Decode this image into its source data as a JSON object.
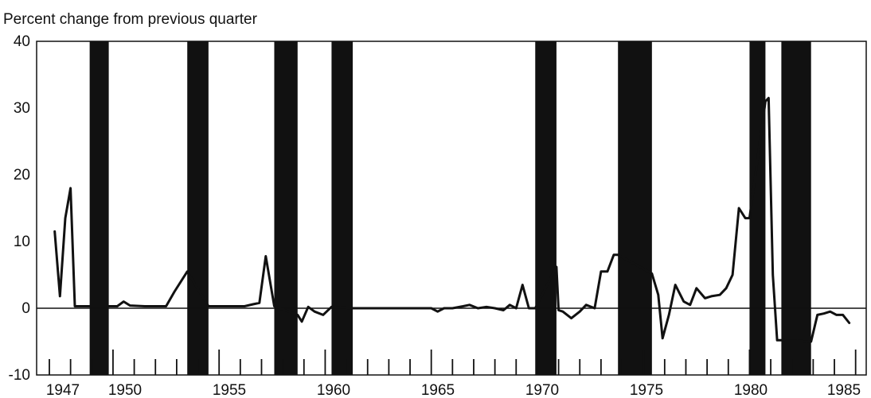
{
  "chart_data": {
    "type": "line",
    "ylabel": "Percent change from previous quarter",
    "xlim": [
      1947,
      1985
    ],
    "ylim": [
      -10,
      40
    ],
    "yticks": [
      -10,
      0,
      10,
      20,
      30,
      40
    ],
    "ytick_labels": [
      "-10",
      "0",
      "10",
      "20",
      "30",
      "40"
    ],
    "xticks": [
      1947,
      1950,
      1955,
      1960,
      1965,
      1970,
      1975,
      1980,
      1985
    ],
    "xtick_labels": [
      "1947",
      "1950",
      "1955",
      "1960",
      "1965",
      "1970",
      "1975",
      "1980",
      "1985"
    ],
    "zero_line": true,
    "recession_shading": [
      [
        1948.9,
        1949.8
      ],
      [
        1953.5,
        1954.5
      ],
      [
        1957.6,
        1958.7
      ],
      [
        1960.3,
        1961.3
      ],
      [
        1969.9,
        1970.9
      ],
      [
        1973.8,
        1975.4
      ],
      [
        1980.0,
        1980.75
      ],
      [
        1981.5,
        1982.9
      ]
    ],
    "series": [
      {
        "x": [
          1947.25,
          1947.5,
          1947.75,
          1948.0,
          1948.2,
          1948.4,
          1948.6,
          1948.9,
          1949.8,
          1950.2,
          1950.5,
          1950.8,
          1951.5,
          1952.5,
          1952.9,
          1953.5,
          1954.5,
          1955.5,
          1956.2,
          1956.6,
          1956.9,
          1957.2,
          1957.6,
          1958.7,
          1958.9,
          1959.2,
          1959.5,
          1959.9,
          1960.3,
          1961.3,
          1965.0,
          1965.3,
          1965.6,
          1966.0,
          1966.5,
          1966.8,
          1967.2,
          1967.6,
          1968.0,
          1968.4,
          1968.7,
          1969.0,
          1969.3,
          1969.6,
          1969.9,
          1970.9,
          1971.0,
          1971.2,
          1971.6,
          1972.0,
          1972.3,
          1972.7,
          1973.0,
          1973.3,
          1973.6,
          1973.8,
          1975.4,
          1975.7,
          1975.9,
          1976.2,
          1976.5,
          1976.9,
          1977.2,
          1977.5,
          1977.9,
          1978.2,
          1978.6,
          1978.9,
          1979.2,
          1979.5,
          1979.8,
          1980.0,
          1980.75,
          1980.9,
          1981.1,
          1981.3,
          1981.5,
          1982.9,
          1983.2,
          1983.5,
          1983.8,
          1984.1,
          1984.4,
          1984.7
        ],
        "values": [
          11.5,
          1.8,
          13.5,
          18.0,
          0.3,
          0.3,
          0.3,
          0.3,
          0.3,
          0.3,
          1.0,
          0.4,
          0.3,
          0.3,
          2.5,
          5.5,
          0.3,
          0.3,
          0.3,
          0.6,
          0.8,
          7.8,
          0.3,
          -1.0,
          -2.0,
          0.2,
          -0.5,
          -1.0,
          0.2,
          0.0,
          0.0,
          -0.5,
          0.0,
          0.0,
          0.3,
          0.5,
          0.0,
          0.2,
          0.0,
          -0.3,
          0.5,
          0.0,
          3.5,
          0.0,
          0.0,
          6.2,
          -0.3,
          -0.5,
          -1.5,
          -0.5,
          0.5,
          0.0,
          5.5,
          5.5,
          8.0,
          8.0,
          5.2,
          2.0,
          -4.5,
          -1.0,
          3.5,
          1.0,
          0.5,
          3.0,
          1.5,
          1.8,
          2.0,
          3.0,
          5.0,
          15.0,
          13.5,
          13.5,
          31.0,
          31.5,
          5.0,
          -4.8,
          -4.8,
          -5.0,
          -1.0,
          -0.8,
          -0.5,
          -1.0,
          -1.0,
          -2.2
        ]
      }
    ]
  }
}
